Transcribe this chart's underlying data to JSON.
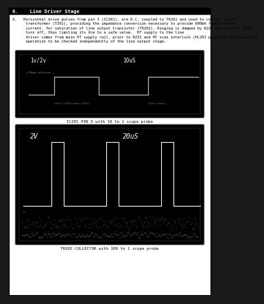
{
  "page_bg": "#1a1a1a",
  "content_bg": "#ffffff",
  "header_bg": "#000000",
  "header_text": "6.    Line Driver Stage",
  "header_text_color": "#ffffff",
  "header_fontsize": 5.0,
  "body_lines": [
    "A.   Horizontal drive pulses from pin 3 (IC201), are D.C. coupled to TR2Q1 and used to control driver",
    "      transformer (T201), providing the impedance conversion necessary to provide 600mA forward base",
    "      current, for saturation of line output transistor (TR202). Ringing is damped by R225 and C214 at TR201",
    "      turn off, thus limiting its Vce to a safe value.  HT supply to the line",
    "      driver comes from main HT supply rail, prior to R231 and HT scan interlock (PL201 pins 5/6; allowing its",
    "      operation to be checked independently of the line output stage."
  ],
  "body_fontsize": 4.0,
  "scope1_caption": "IC201 PIN 3 with 10 to 1 scope probe",
  "scope2_caption": "TR202 COLLECTOR with 100 to 1 scope probe",
  "scope1_label_left": "1v/2v",
  "scope1_label_right": "10uS",
  "scope2_label_left": "2V",
  "scope2_label_right": "20uS",
  "caption_fontsize": 4.2,
  "scope_bg": "#000000",
  "scope_signal_color": "#ffffff",
  "scope_edge_color": "#888888"
}
